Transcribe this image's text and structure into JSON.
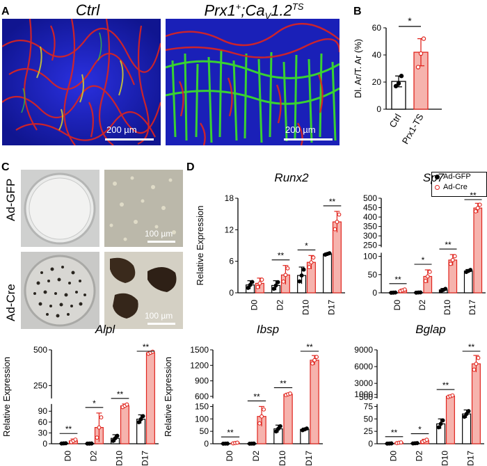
{
  "panels": {
    "A": "A",
    "B": "B",
    "C": "C",
    "D": "D"
  },
  "panelA": {
    "left_title": "Ctrl",
    "right_title_main": "Prx1",
    "right_title_sup1": "+",
    "right_title_mid": ";Ca",
    "right_title_sub": "V",
    "right_title_end": "1.2",
    "right_title_sup2": "TS",
    "scale_label": "200 µm",
    "colors": {
      "background": "#1f24c8",
      "red": "#e0241d",
      "green": "#3bdc2a"
    }
  },
  "panelC": {
    "row1_label": "Ad-GFP",
    "row2_label": "Ad-Cre",
    "scale_label": "100 µm"
  },
  "legend": {
    "gfp": "Ad-GFP",
    "cre": "Ad-Cre"
  },
  "chart_data": [
    {
      "id": "B",
      "type": "bar",
      "title": "",
      "ylabel": "Dl. Ar/T. Ar (%)",
      "categories": [
        "Ctrl",
        "Prx1-TS"
      ],
      "values": [
        20.5,
        42
      ],
      "errors": [
        4,
        10
      ],
      "points": [
        [
          17,
          19,
          24.5
        ],
        [
          31,
          41,
          52
        ]
      ],
      "ylim": [
        0,
        60
      ],
      "yticks": [
        0,
        20,
        40,
        60
      ],
      "sig": [
        {
          "label": "*",
          "pair": [
            0,
            1
          ]
        }
      ]
    },
    {
      "id": "Runx2",
      "type": "bar",
      "title": "Runx2",
      "ylabel": "Relative Expression",
      "categories": [
        "D0",
        "D2",
        "D10",
        "D17"
      ],
      "series": [
        {
          "name": "Ad-GFP",
          "values": [
            1.5,
            1.4,
            3.3,
            7.4
          ],
          "errors": [
            0.8,
            0.9,
            1.6,
            0.2
          ]
        },
        {
          "name": "Ad-Cre",
          "values": [
            1.8,
            3.4,
            5.8,
            13.5
          ],
          "errors": [
            1.0,
            1.8,
            1.3,
            2.0
          ]
        }
      ],
      "ylim": [
        0,
        18
      ],
      "yticks": [
        0,
        6,
        12,
        18
      ],
      "sig": [
        {
          "label": "",
          "cat": 0
        },
        {
          "label": "**",
          "cat": 1
        },
        {
          "label": "*",
          "cat": 2
        },
        {
          "label": "**",
          "cat": 3
        }
      ]
    },
    {
      "id": "Sp7",
      "type": "bar",
      "title": "Sp7",
      "categories": [
        "D0",
        "D2",
        "D10",
        "D17"
      ],
      "series": [
        {
          "name": "Ad-GFP",
          "values": [
            0.5,
            0.8,
            8,
            60
          ],
          "errors": [
            0.5,
            0.5,
            4,
            4
          ]
        },
        {
          "name": "Ad-Cre",
          "values": [
            7,
            45,
            90,
            448
          ],
          "errors": [
            3,
            18,
            15,
            25
          ]
        }
      ],
      "ylim": [
        0,
        500
      ],
      "yticks": [
        0,
        50,
        100,
        250,
        300,
        350,
        400,
        450,
        500
      ],
      "axis_break": [
        110,
        240
      ],
      "sig": [
        {
          "label": "**",
          "cat": 0
        },
        {
          "label": "*",
          "cat": 1
        },
        {
          "label": "**",
          "cat": 2
        },
        {
          "label": "**",
          "cat": 3
        }
      ]
    },
    {
      "id": "Alpl",
      "type": "bar",
      "title": "Alpl",
      "ylabel": "Relative Expression",
      "categories": [
        "D0",
        "D2",
        "D10",
        "D17"
      ],
      "series": [
        {
          "name": "Ad-GFP",
          "values": [
            1,
            0.5,
            15,
            68
          ],
          "errors": [
            0.5,
            0.3,
            10,
            12
          ]
        },
        {
          "name": "Ad-Cre",
          "values": [
            8,
            45,
            105,
            480
          ],
          "errors": [
            5,
            40,
            5,
            10
          ]
        }
      ],
      "ylim": [
        0,
        500
      ],
      "yticks": [
        0,
        30,
        60,
        90,
        250,
        500
      ],
      "axis_break": [
        110,
        160
      ],
      "sig": [
        {
          "label": "**",
          "cat": 0
        },
        {
          "label": "*",
          "cat": 1
        },
        {
          "label": "**",
          "cat": 2
        },
        {
          "label": "**",
          "cat": 3
        }
      ]
    },
    {
      "id": "Ibsp",
      "type": "bar",
      "title": "Ibsp",
      "ylabel": "Relative Expression",
      "categories": [
        "D0",
        "D2",
        "D10",
        "D17"
      ],
      "series": [
        {
          "name": "Ad-GFP",
          "values": [
            0.5,
            0.5,
            60,
            58
          ],
          "errors": [
            0.3,
            0.3,
            15,
            5
          ]
        },
        {
          "name": "Ad-Cre",
          "values": [
            3,
            110,
            640,
            1300
          ],
          "errors": [
            2,
            40,
            20,
            90
          ]
        }
      ],
      "ylim": [
        0,
        1500
      ],
      "yticks": [
        0,
        50,
        100,
        150,
        600,
        900,
        1200,
        1500
      ],
      "axis_break": [
        160,
        560
      ],
      "sig": [
        {
          "label": "**",
          "cat": 0
        },
        {
          "label": "**",
          "cat": 1
        },
        {
          "label": "**",
          "cat": 2
        },
        {
          "label": "**",
          "cat": 3
        }
      ]
    },
    {
      "id": "Bglap",
      "type": "bar",
      "title": "Bglap",
      "categories": [
        "D0",
        "D2",
        "D10",
        "D17"
      ],
      "series": [
        {
          "name": "Ad-GFP",
          "values": [
            0.5,
            1,
            40,
            60
          ],
          "errors": [
            0.3,
            0.5,
            10,
            8
          ]
        },
        {
          "name": "Ad-Cre",
          "values": [
            2,
            6,
            700,
            6500
          ],
          "errors": [
            1,
            3,
            200,
            1500
          ]
        }
      ],
      "ylim": [
        0,
        9000
      ],
      "yticks": [
        0,
        25,
        50,
        75,
        500,
        1000,
        3000,
        6000,
        9000
      ],
      "axis_break": [
        80,
        300
      ],
      "sig": [
        {
          "label": "**",
          "cat": 0
        },
        {
          "label": "*",
          "cat": 1
        },
        {
          "label": "**",
          "cat": 2
        },
        {
          "label": "**",
          "cat": 3
        }
      ]
    }
  ]
}
